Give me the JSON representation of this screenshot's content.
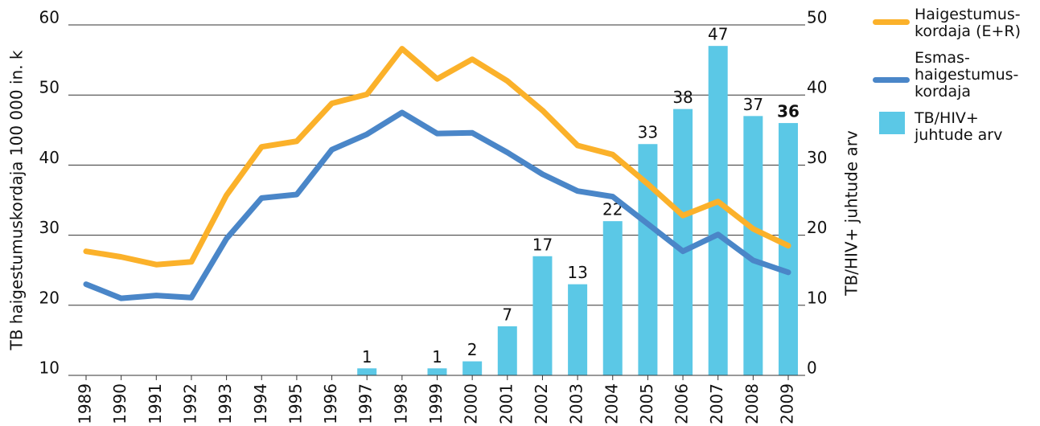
{
  "chart_data": {
    "type": "bar-line",
    "y_label": "TB haigestumuskordaja 100 000 in. k",
    "y2_label": "TB/HIV+ juhtude arv",
    "categories": [
      "1989",
      "1990",
      "1991",
      "1992",
      "1993",
      "1994",
      "1995",
      "1996",
      "1997",
      "1998",
      "1999",
      "2000",
      "2001",
      "2002",
      "2003",
      "2004",
      "2005",
      "2006",
      "2007",
      "2008",
      "2009"
    ],
    "ylim": [
      10,
      60
    ],
    "yticks": [
      10,
      20,
      30,
      40,
      50,
      60
    ],
    "y2lim": [
      0,
      50
    ],
    "y2ticks": [
      0,
      10,
      20,
      30,
      40,
      50
    ],
    "grid": true,
    "series": [
      {
        "name": "Haigestumus-\nkordaja (E+R)",
        "type": "line",
        "color": "#fbb12a",
        "values": [
          27.7,
          26.9,
          25.8,
          26.2,
          35.7,
          42.6,
          43.4,
          48.8,
          50.1,
          56.6,
          52.3,
          55.1,
          52.0,
          47.8,
          42.8,
          41.5,
          37.3,
          32.8,
          34.8,
          30.9,
          28.5
        ]
      },
      {
        "name": "Esmas-\nhaigestumus-\nkordaja",
        "type": "line",
        "color": "#4a86c8",
        "values": [
          23.0,
          21.0,
          21.4,
          21.1,
          29.5,
          35.3,
          35.8,
          42.2,
          44.4,
          47.5,
          44.5,
          44.6,
          41.8,
          38.7,
          36.3,
          35.5,
          31.6,
          27.7,
          30.1,
          26.4,
          24.7
        ]
      },
      {
        "name": "TB/HIV+\njuhtude arv",
        "type": "bar",
        "color": "#5bc8e6",
        "axis": "y2",
        "values": [
          null,
          null,
          null,
          null,
          null,
          null,
          null,
          null,
          1,
          null,
          1,
          2,
          7,
          17,
          13,
          22,
          33,
          38,
          47,
          37,
          36
        ]
      }
    ]
  }
}
